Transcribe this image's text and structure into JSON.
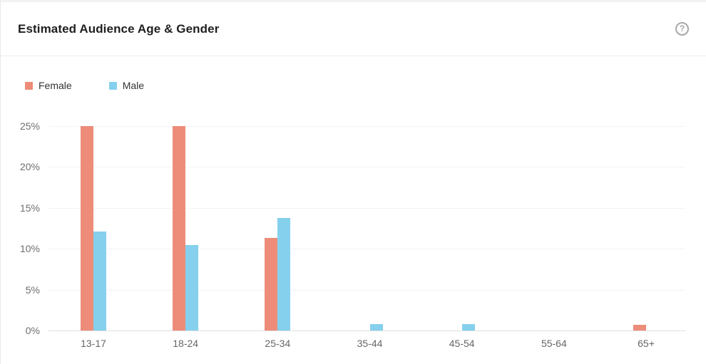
{
  "header": {
    "title": "Estimated Audience Age & Gender"
  },
  "icons": {
    "help": "?"
  },
  "legend": {
    "items": [
      {
        "label": "Female",
        "color": "#ec8c79"
      },
      {
        "label": "Male",
        "color": "#85d0ed"
      }
    ]
  },
  "chart_data": {
    "type": "bar",
    "title": "Estimated Audience Age & Gender",
    "categories": [
      "13-17",
      "18-24",
      "25-34",
      "35-44",
      "45-54",
      "55-64",
      "65+"
    ],
    "series": [
      {
        "name": "Female",
        "color": "#ec8c79",
        "values": [
          25.0,
          25.0,
          11.3,
          0,
          0,
          0,
          0.7
        ]
      },
      {
        "name": "Male",
        "color": "#85d0ed",
        "values": [
          12.1,
          10.4,
          13.7,
          0.8,
          0.8,
          0,
          0
        ]
      }
    ],
    "xlabel": "",
    "ylabel": "",
    "ylim": [
      0,
      25
    ],
    "y_ticks": [
      "0%",
      "5%",
      "10%",
      "15%",
      "20%",
      "25%"
    ],
    "grid": true,
    "legend_position": "top-left",
    "colors": {
      "gridline": "#f3f3f3",
      "axis_line": "#dfdfdf",
      "tick_text": "#6e6e6e",
      "category_text": "#666666"
    }
  }
}
